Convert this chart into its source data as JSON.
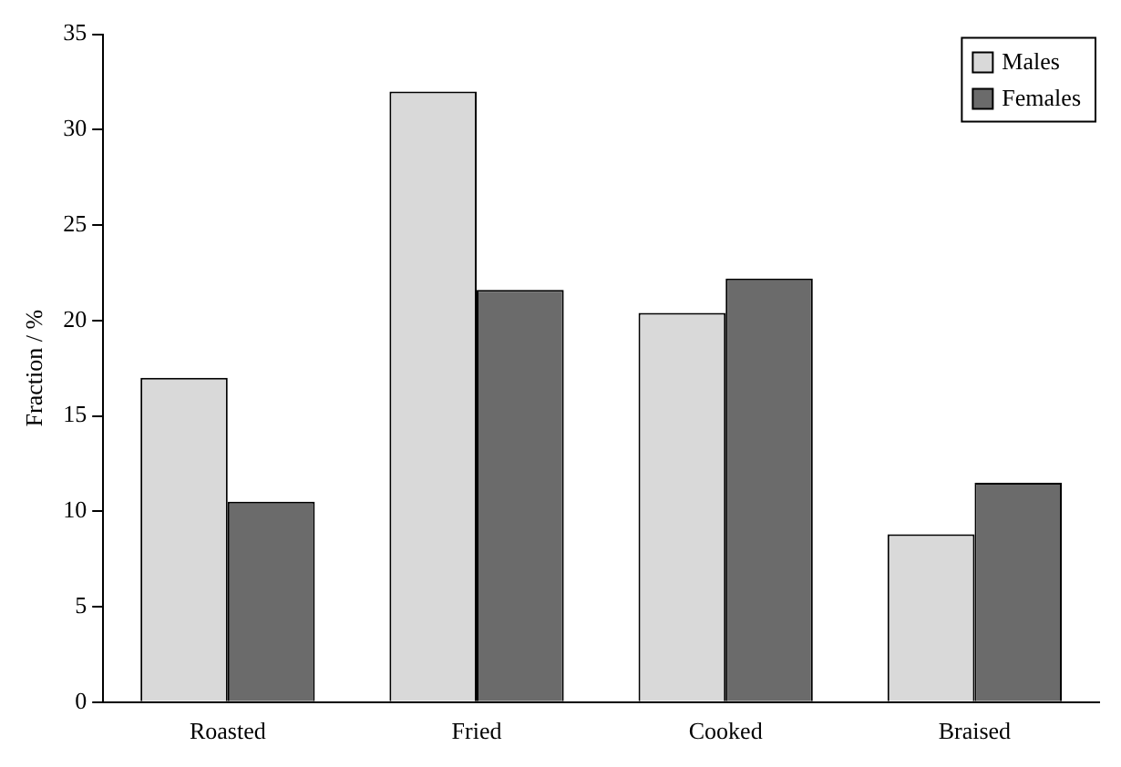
{
  "chart_data": {
    "type": "bar",
    "ylabel": "Fraction / %",
    "categories": [
      "Roasted",
      "Fried",
      "Cooked",
      "Braised"
    ],
    "series": [
      {
        "name": "Males",
        "color": "#d9d9d9",
        "values": [
          17,
          32,
          20.4,
          8.8
        ]
      },
      {
        "name": "Females",
        "color": "#6b6b6b",
        "values": [
          10.5,
          21.6,
          22.2,
          11.5
        ]
      }
    ],
    "ylim": [
      0,
      35
    ],
    "yticks": [
      0,
      5,
      10,
      15,
      20,
      25,
      30,
      35
    ],
    "grid": false,
    "legend": "top right"
  }
}
